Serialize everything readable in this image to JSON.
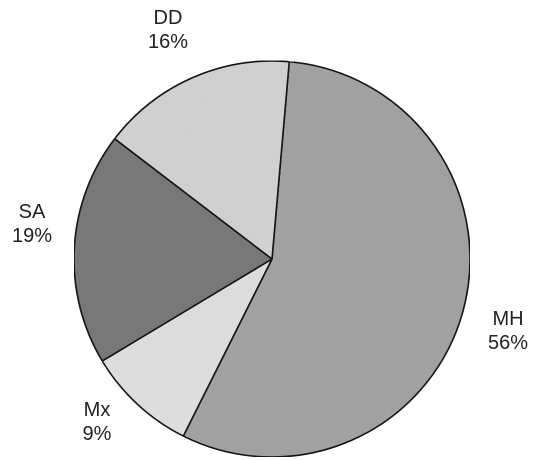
{
  "chart_data": {
    "type": "pie",
    "start_angle_deg": 5,
    "direction": "clockwise",
    "slices": [
      {
        "label": "MH",
        "value": 56,
        "value_label": "56%",
        "color": "#a9a9a9"
      },
      {
        "label": "Mx",
        "value": 9,
        "value_label": "9%",
        "color": "#e6e6e6"
      },
      {
        "label": "SA",
        "value": 19,
        "value_label": "19%",
        "color": "#7e7e7e"
      },
      {
        "label": "DD",
        "value": 16,
        "value_label": "16%",
        "color": "#d9d9d9"
      }
    ]
  }
}
